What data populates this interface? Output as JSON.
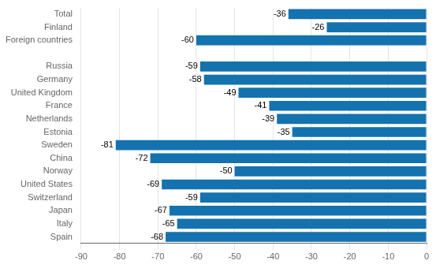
{
  "chart_data": {
    "type": "bar",
    "orientation": "horizontal",
    "categories": [
      "Spain",
      "Italy",
      "Japan",
      "Switzerland",
      "United States",
      "Norway",
      "China",
      "Sweden",
      "Estonia",
      "Netherlands",
      "France",
      "United Kingdom",
      "Germany",
      "Russia",
      null,
      "Foreign countries",
      "Finland",
      "Total"
    ],
    "values": [
      -68,
      -65,
      -67,
      -59,
      -69,
      -50,
      -72,
      -81,
      -35,
      -39,
      -41,
      -49,
      -58,
      -59,
      null,
      -60,
      -26,
      -36
    ],
    "color": "#1472ae",
    "xlim": [
      -90,
      0
    ],
    "xticks": [
      -90,
      -80,
      -70,
      -60,
      -50,
      -40,
      -30,
      -20,
      -10,
      0
    ],
    "grid": true,
    "data_labels": true
  }
}
